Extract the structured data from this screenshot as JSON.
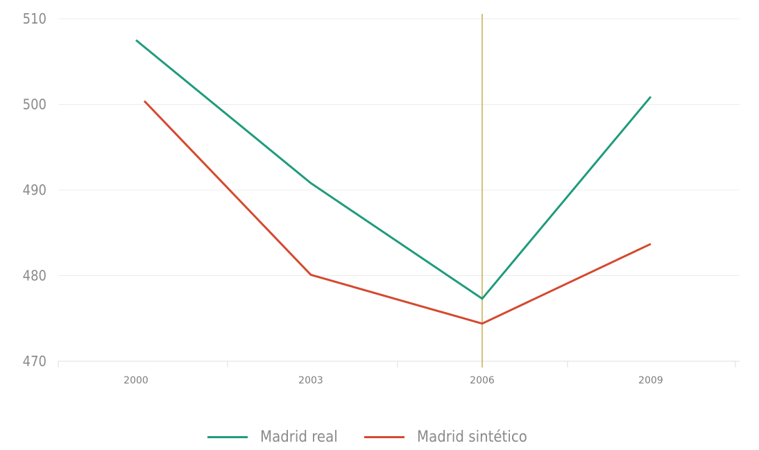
{
  "chart_data": {
    "type": "line",
    "x": [
      2000,
      2003,
      2006,
      2009
    ],
    "x_tick_labels": [
      "2000",
      "2003",
      "2006",
      "2009"
    ],
    "y_tick_labels": [
      "510",
      "500",
      "490",
      "480",
      "470"
    ],
    "ylim": [
      470,
      510
    ],
    "grid": "horizontal",
    "series": [
      {
        "name": "Madrid real",
        "color": "#1f9b7c",
        "values": [
          507.5,
          490.8,
          477.3,
          500.9
        ]
      },
      {
        "name": "Madrid sintético",
        "color": "#d4492f",
        "values": [
          500.4,
          480.1,
          474.4,
          483.7
        ]
      }
    ],
    "reference_line": {
      "x": 2006,
      "color": "#b79a1f"
    },
    "legend_position": "bottom-center"
  }
}
